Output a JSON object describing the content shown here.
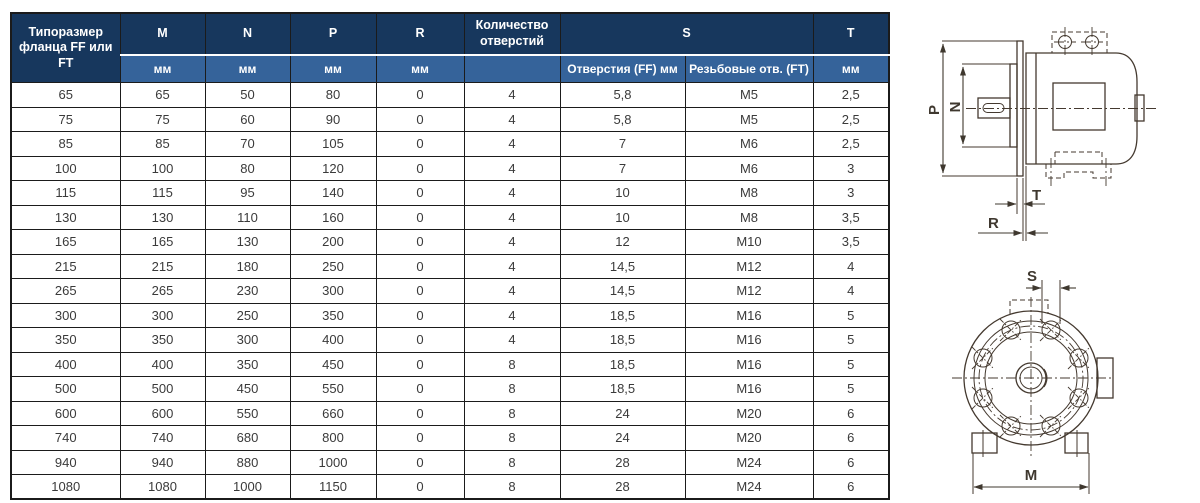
{
  "table": {
    "corner_header": "Типоразмер фланца FF или FT",
    "headers": {
      "m": "M",
      "n": "N",
      "p": "P",
      "r": "R",
      "qty": "Количество отверстий",
      "s": "S",
      "t": "T"
    },
    "subheaders": [
      "мм",
      "мм",
      "мм",
      "мм",
      "",
      "Отверстия (FF) мм",
      "Резьбовые отв. (FT)",
      "мм"
    ],
    "rows": [
      [
        "65",
        "65",
        "50",
        "80",
        "0",
        "4",
        "5,8",
        "M5",
        "2,5"
      ],
      [
        "75",
        "75",
        "60",
        "90",
        "0",
        "4",
        "5,8",
        "M5",
        "2,5"
      ],
      [
        "85",
        "85",
        "70",
        "105",
        "0",
        "4",
        "7",
        "M6",
        "2,5"
      ],
      [
        "100",
        "100",
        "80",
        "120",
        "0",
        "4",
        "7",
        "M6",
        "3"
      ],
      [
        "115",
        "115",
        "95",
        "140",
        "0",
        "4",
        "10",
        "M8",
        "3"
      ],
      [
        "130",
        "130",
        "110",
        "160",
        "0",
        "4",
        "10",
        "M8",
        "3,5"
      ],
      [
        "165",
        "165",
        "130",
        "200",
        "0",
        "4",
        "12",
        "M10",
        "3,5"
      ],
      [
        "215",
        "215",
        "180",
        "250",
        "0",
        "4",
        "14,5",
        "M12",
        "4"
      ],
      [
        "265",
        "265",
        "230",
        "300",
        "0",
        "4",
        "14,5",
        "M12",
        "4"
      ],
      [
        "300",
        "300",
        "250",
        "350",
        "0",
        "4",
        "18,5",
        "M16",
        "5"
      ],
      [
        "350",
        "350",
        "300",
        "400",
        "0",
        "4",
        "18,5",
        "M16",
        "5"
      ],
      [
        "400",
        "400",
        "350",
        "450",
        "0",
        "8",
        "18,5",
        "M16",
        "5"
      ],
      [
        "500",
        "500",
        "450",
        "550",
        "0",
        "8",
        "18,5",
        "M16",
        "5"
      ],
      [
        "600",
        "600",
        "550",
        "660",
        "0",
        "8",
        "24",
        "M20",
        "6"
      ],
      [
        "740",
        "740",
        "680",
        "800",
        "0",
        "8",
        "24",
        "M20",
        "6"
      ],
      [
        "940",
        "940",
        "880",
        "1000",
        "0",
        "8",
        "28",
        "M24",
        "6"
      ],
      [
        "1080",
        "1080",
        "1000",
        "1150",
        "0",
        "8",
        "28",
        "M24",
        "6"
      ]
    ]
  },
  "drawings": {
    "side_view_labels": {
      "p": "P",
      "n": "N",
      "t": "T",
      "r": "R"
    },
    "front_view_labels": {
      "s": "S",
      "m": "M"
    }
  },
  "colors": {
    "header_dark": "#17375d",
    "header_light": "#35639a",
    "header_text": "#ffffff",
    "body_text": "#3a3a3a",
    "table_border": "#1b1b1b",
    "drawing_line": "#44392f"
  }
}
